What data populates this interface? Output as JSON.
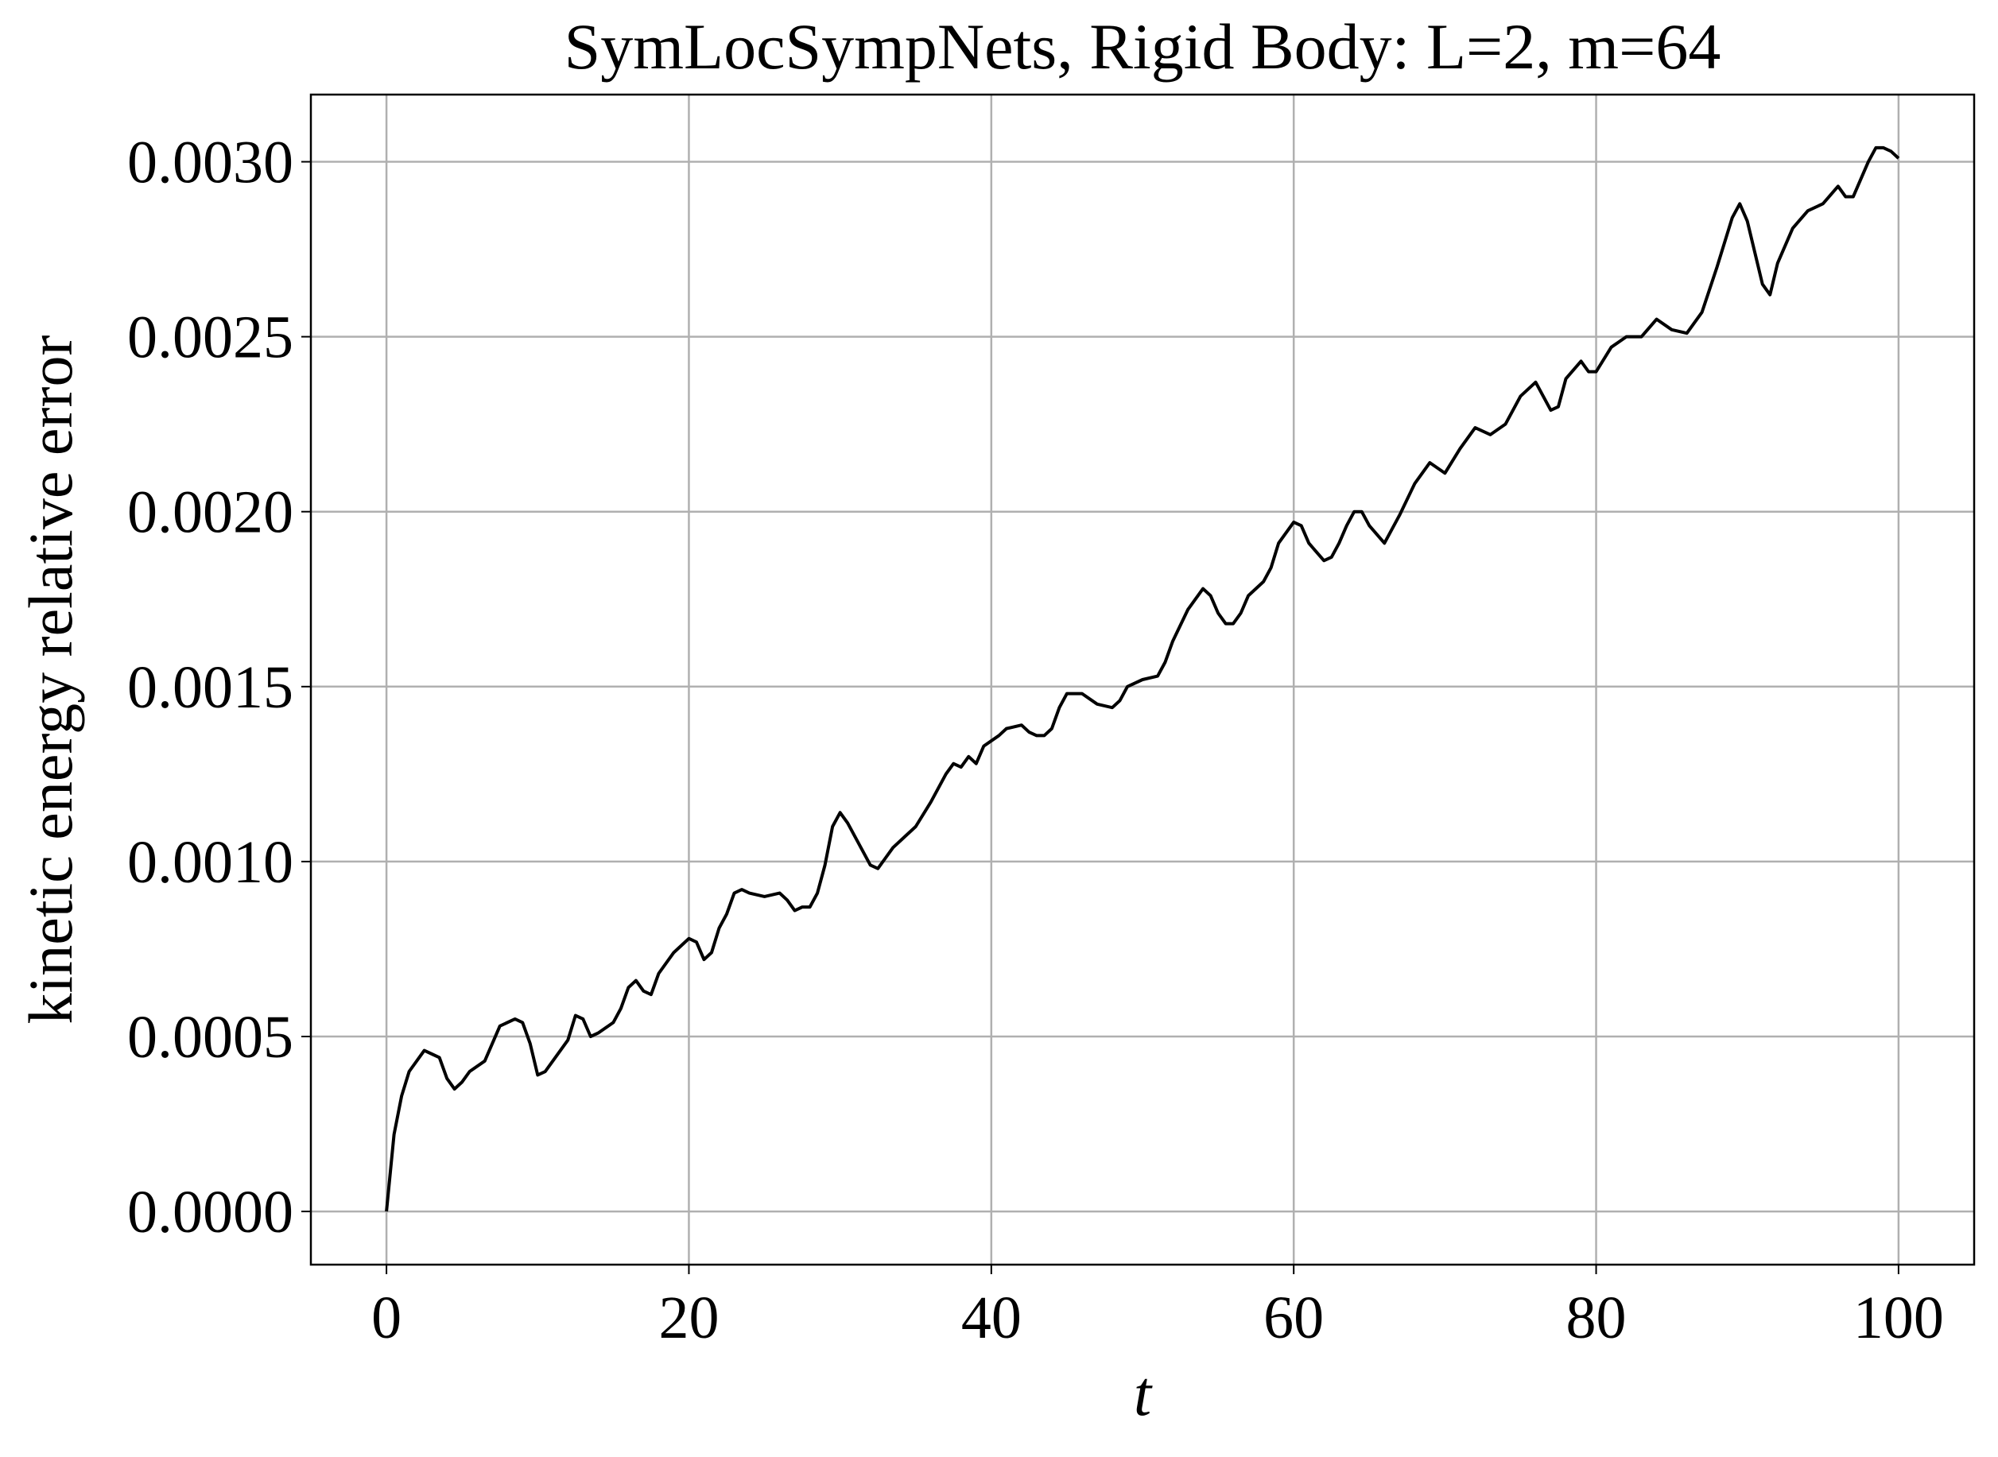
{
  "chart_data": {
    "type": "line",
    "title": "SymLocSympNets, Rigid Body: L=2, m=64",
    "x_label": "t",
    "y_label": "kinetic energy relative error",
    "x": [
      0,
      0.5,
      1,
      1.5,
      2.5,
      3,
      3.5,
      4,
      4.5,
      5,
      5.5,
      6.5,
      7,
      7.5,
      8.5,
      9,
      9.5,
      10,
      10.5,
      11,
      12,
      12.5,
      13,
      13.5,
      14,
      15,
      15.5,
      16,
      16.5,
      17,
      17.5,
      18,
      19,
      20,
      20.5,
      21,
      21.5,
      22,
      22.5,
      23,
      23.5,
      24,
      25,
      26,
      26.5,
      27,
      27.5,
      28,
      28.5,
      29,
      29.5,
      30,
      30.5,
      31,
      32,
      32.5,
      33,
      33.5,
      34,
      35,
      36,
      37,
      37.5,
      38,
      38.5,
      39,
      39.5,
      40.5,
      41,
      42,
      42.5,
      43,
      43.5,
      44,
      44.5,
      45,
      46,
      47,
      48,
      48.5,
      49,
      50,
      51,
      51.5,
      52,
      53,
      54,
      54.5,
      55,
      55.5,
      56,
      56.5,
      57,
      58,
      58.5,
      59,
      60,
      60.5,
      61,
      62,
      62.5,
      63,
      63.5,
      64,
      64.5,
      65,
      66,
      67,
      68,
      69,
      70,
      71,
      72,
      73,
      74,
      75,
      76,
      77,
      77.5,
      78,
      79,
      79.5,
      80,
      81,
      82,
      83,
      84,
      85,
      86,
      87,
      88,
      89,
      89.5,
      90,
      91,
      91.5,
      92,
      93,
      94,
      95,
      96,
      96.5,
      97,
      98,
      98.5,
      99,
      99.5,
      100
    ],
    "values": [
      0,
      0.00022,
      0.00033,
      0.0004,
      0.00046,
      0.00045,
      0.00044,
      0.00038,
      0.00035,
      0.00037,
      0.0004,
      0.00043,
      0.00048,
      0.00053,
      0.00055,
      0.00054,
      0.00048,
      0.00039,
      0.0004,
      0.00043,
      0.00049,
      0.00056,
      0.00055,
      0.0005,
      0.00051,
      0.00054,
      0.00058,
      0.00064,
      0.00066,
      0.00063,
      0.00062,
      0.00068,
      0.00074,
      0.00078,
      0.00077,
      0.00072,
      0.00074,
      0.00081,
      0.00085,
      0.00091,
      0.00092,
      0.00091,
      0.0009,
      0.00091,
      0.00089,
      0.00086,
      0.00087,
      0.00087,
      0.00091,
      0.00099,
      0.0011,
      0.00114,
      0.00111,
      0.00107,
      0.00099,
      0.00098,
      0.00101,
      0.00104,
      0.00106,
      0.0011,
      0.00117,
      0.00125,
      0.00128,
      0.00127,
      0.0013,
      0.00128,
      0.00133,
      0.00136,
      0.00138,
      0.00139,
      0.00137,
      0.00136,
      0.00136,
      0.00138,
      0.00144,
      0.00148,
      0.00148,
      0.00145,
      0.00144,
      0.00146,
      0.0015,
      0.00152,
      0.00153,
      0.00157,
      0.00163,
      0.00172,
      0.00178,
      0.00176,
      0.00171,
      0.00168,
      0.00168,
      0.00171,
      0.00176,
      0.0018,
      0.00184,
      0.00191,
      0.00197,
      0.00196,
      0.00191,
      0.00186,
      0.00187,
      0.00191,
      0.00196,
      0.002,
      0.002,
      0.00196,
      0.00191,
      0.00199,
      0.00208,
      0.00214,
      0.00211,
      0.00218,
      0.00224,
      0.00222,
      0.00225,
      0.00233,
      0.00237,
      0.00229,
      0.0023,
      0.00238,
      0.00243,
      0.0024,
      0.0024,
      0.00247,
      0.0025,
      0.0025,
      0.00255,
      0.00252,
      0.00251,
      0.00257,
      0.0027,
      0.00284,
      0.00288,
      0.00283,
      0.00265,
      0.00262,
      0.00271,
      0.00281,
      0.00286,
      0.00288,
      0.00293,
      0.0029,
      0.0029,
      0.003,
      0.00304,
      0.00304,
      0.00303,
      0.00301
    ],
    "color": "#000000",
    "xlim": [
      -5,
      105
    ],
    "ylim": [
      -0.000152,
      0.003192
    ],
    "xticks": [
      0,
      20,
      40,
      60,
      80,
      100
    ],
    "yticks": [
      {
        "value": 0,
        "label": "0.0000"
      },
      {
        "value": 0.0005,
        "label": "0.0005"
      },
      {
        "value": 0.001,
        "label": "0.0010"
      },
      {
        "value": 0.0015,
        "label": "0.0015"
      },
      {
        "value": 0.002,
        "label": "0.0020"
      },
      {
        "value": 0.0025,
        "label": "0.0025"
      },
      {
        "value": 0.003,
        "label": "0.0030"
      }
    ],
    "grid": true
  }
}
